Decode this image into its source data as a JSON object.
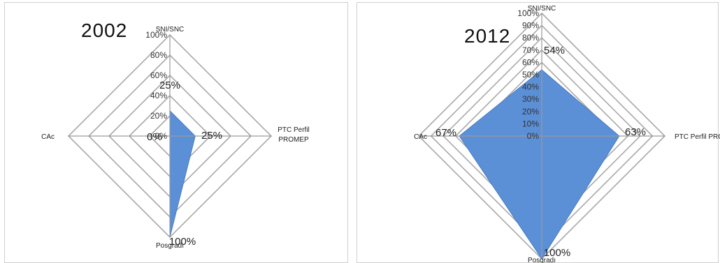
{
  "chart_data": [
    {
      "type": "radar",
      "title": "2002",
      "axes": [
        "SNI/SNC",
        "PTC Perfil PROMEP",
        "Posgrado",
        "CAc"
      ],
      "values": [
        25,
        25,
        100,
        0
      ],
      "ticks": [
        "0%",
        "20%",
        "40%",
        "60%",
        "80%",
        "100%"
      ],
      "value_labels": [
        "25%",
        "25%",
        "100%",
        "0%"
      ],
      "range": [
        0,
        100
      ],
      "fill_color": "#5b8fd6",
      "grid": true
    },
    {
      "type": "radar",
      "title": "2012",
      "axes": [
        "SNI/SNC",
        "PTC Perfil PROMEP",
        "Posgrado",
        "CAc"
      ],
      "values": [
        54,
        63,
        100,
        67
      ],
      "ticks": [
        "0%",
        "10%",
        "20%",
        "30%",
        "40%",
        "50%",
        "60%",
        "70%",
        "80%",
        "90%",
        "100%"
      ],
      "value_labels": [
        "54%",
        "63%",
        "100%",
        "67%"
      ],
      "range": [
        0,
        100
      ],
      "fill_color": "#5b8fd6",
      "grid": true
    }
  ],
  "axis_display": [
    [
      "SNI/SNC",
      "PTC Perfil",
      "PROMEP",
      "Posgradı",
      "CAc"
    ],
    [
      "SNI/SNC",
      "PTC Perfil PROMEI",
      "Posgradı",
      "CAc"
    ]
  ]
}
